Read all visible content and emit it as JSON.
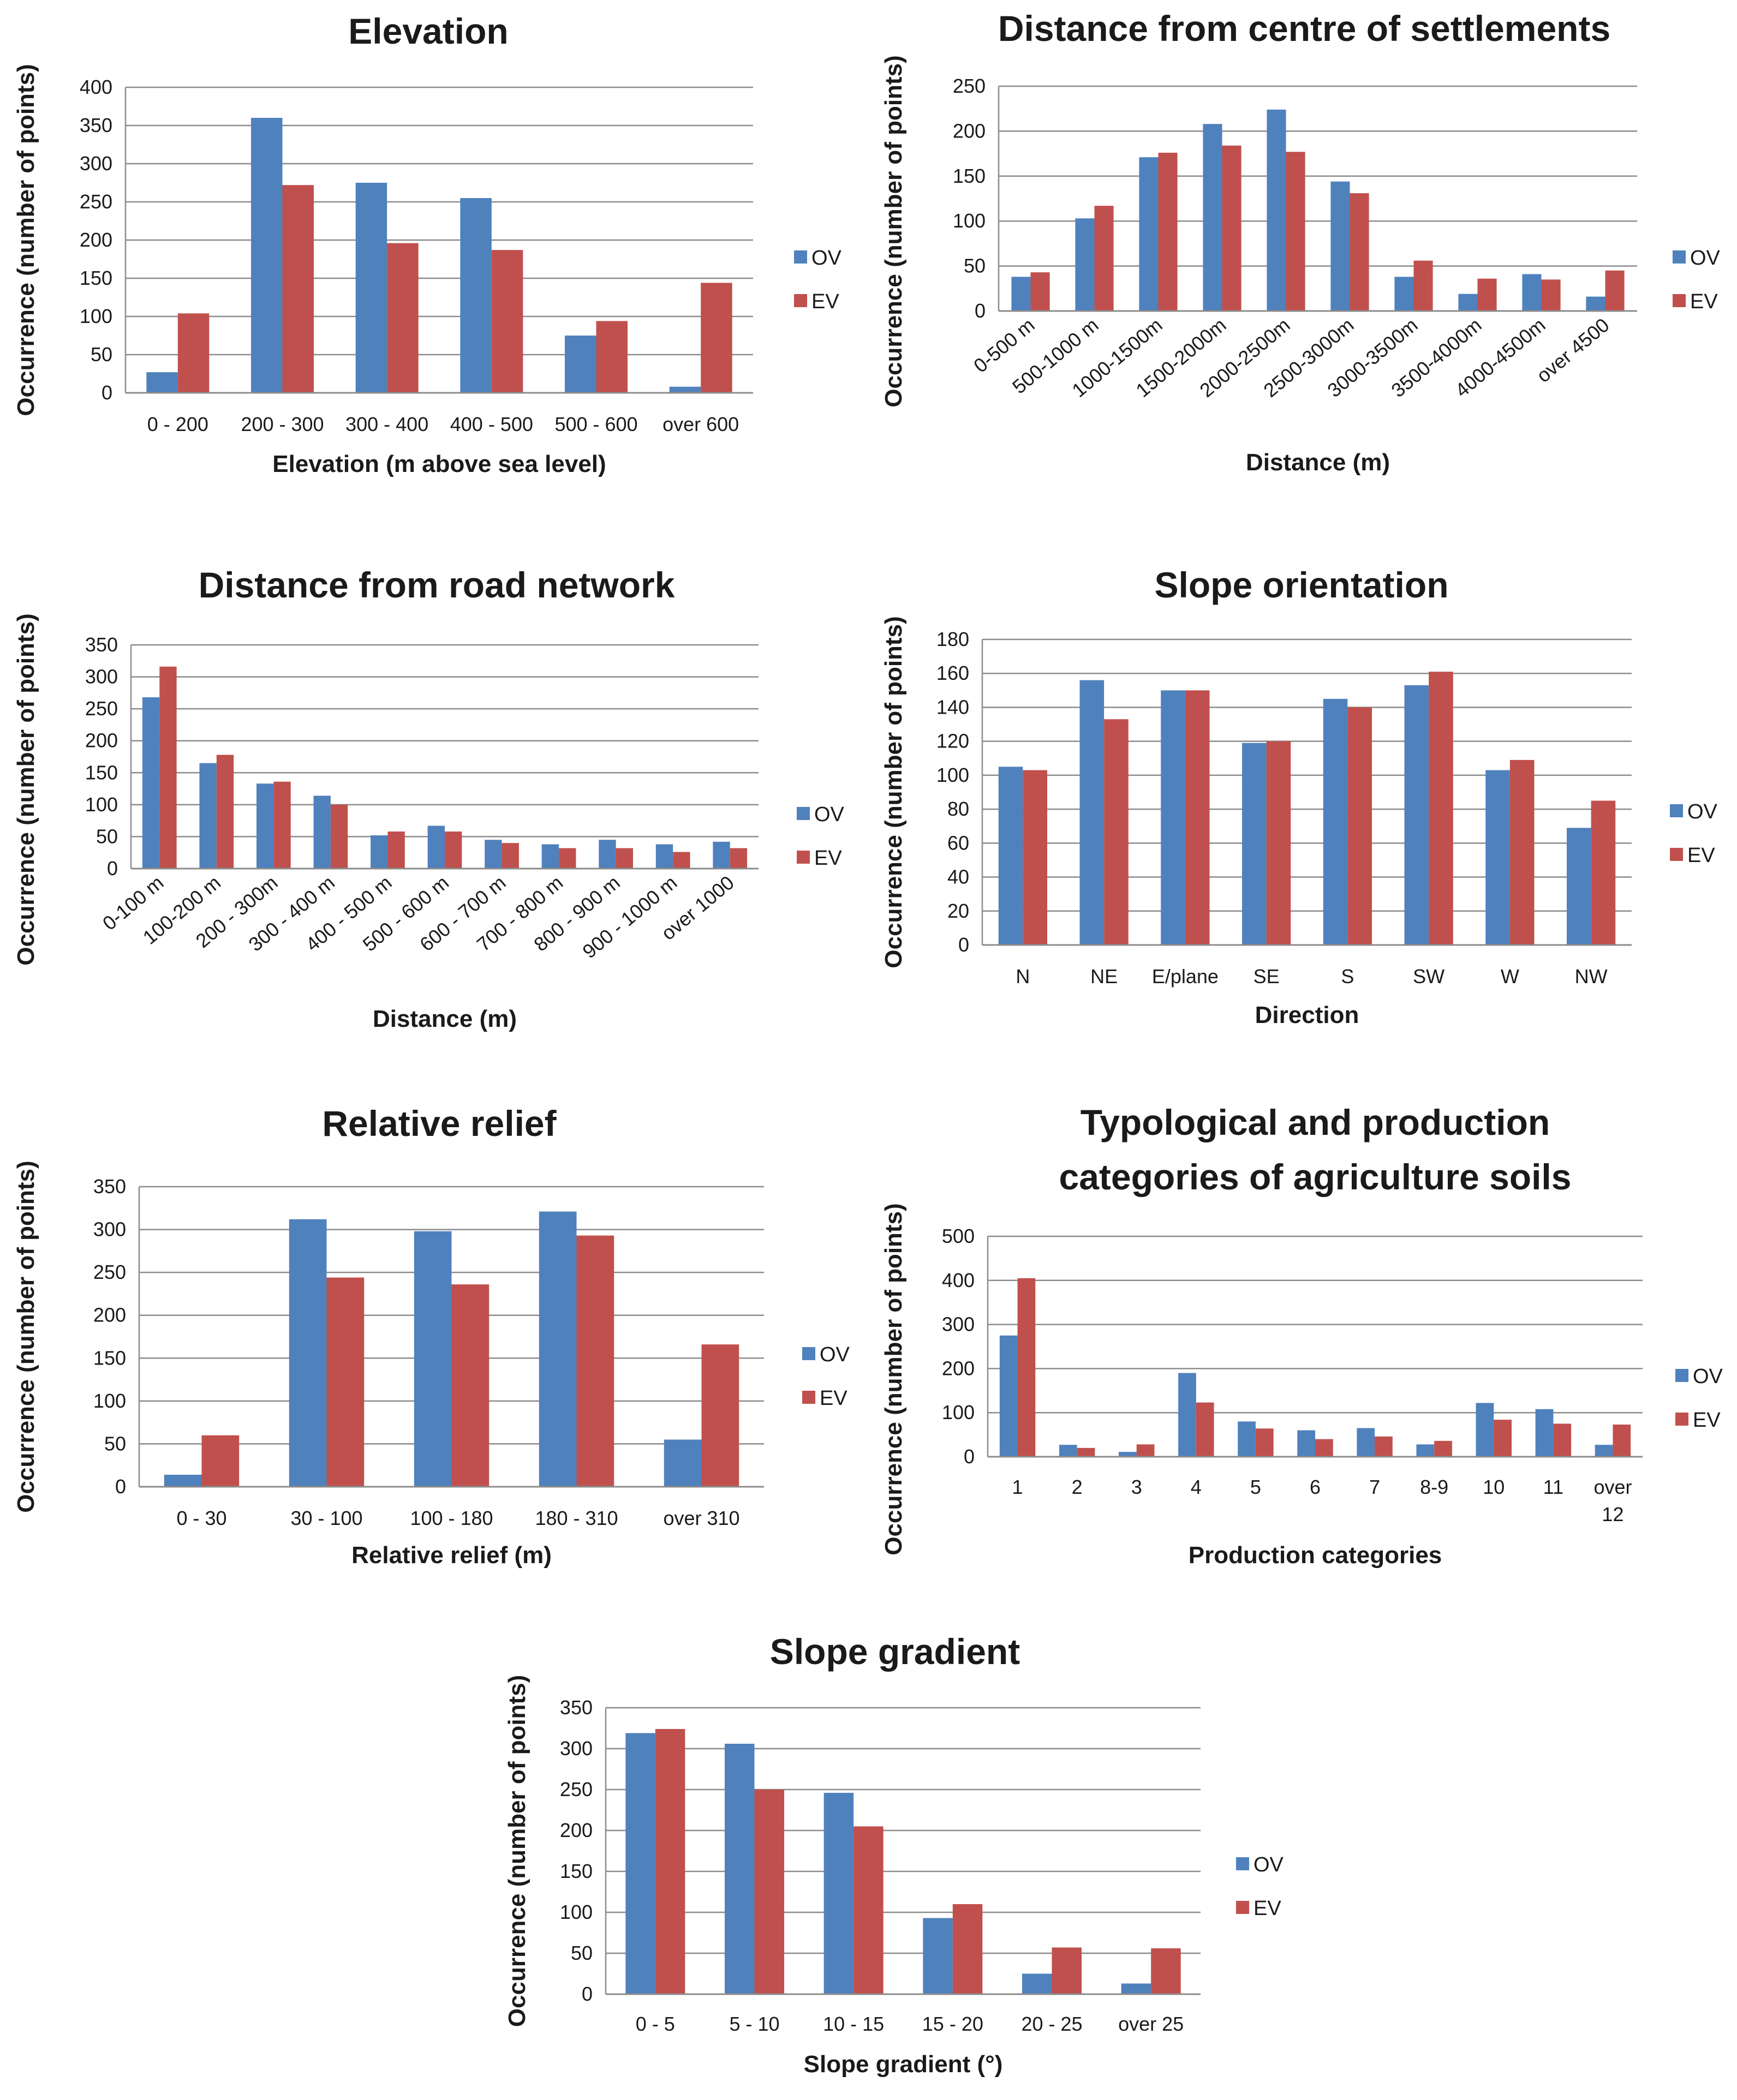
{
  "colors": {
    "OV": "#4F81BD",
    "EV": "#C0504D",
    "grid": "#8c8c8c"
  },
  "chart_data": [
    {
      "type": "bar",
      "title": [
        "Elevation"
      ],
      "xlabel": "Elevation (m above sea level)",
      "ylabel": "Occurrence (number of points)",
      "ylim": [
        0,
        400
      ],
      "yticks": [
        0,
        50,
        100,
        150,
        200,
        250,
        300,
        350,
        400
      ],
      "categories": [
        "0 - 200",
        "200 - 300",
        "300 - 400",
        "400 - 500",
        "500 - 600",
        "over 600"
      ],
      "series": [
        {
          "name": "OV",
          "values": [
            27,
            360,
            275,
            255,
            75,
            8
          ]
        },
        {
          "name": "EV",
          "values": [
            104,
            272,
            196,
            187,
            94,
            144
          ]
        }
      ],
      "legend": "right",
      "grid": true
    },
    {
      "type": "bar",
      "title": [
        "Distance from centre of settlements"
      ],
      "xlabel": "Distance (m)",
      "ylabel": "Occurrence (number of points)",
      "ylim": [
        0,
        250
      ],
      "yticks": [
        0,
        50,
        100,
        150,
        200,
        250
      ],
      "categories": [
        "0-500 m",
        "500-1000 m",
        "1000-1500m",
        "1500-2000m",
        "2000-2500m",
        "2500-3000m",
        "3000-3500m",
        "3500-4000m",
        "4000-4500m",
        "over 4500"
      ],
      "series": [
        {
          "name": "OV",
          "values": [
            38,
            103,
            171,
            208,
            224,
            144,
            38,
            19,
            41,
            16
          ]
        },
        {
          "name": "EV",
          "values": [
            43,
            117,
            176,
            184,
            177,
            131,
            56,
            36,
            35,
            45
          ]
        }
      ],
      "legend": "right",
      "grid": true
    },
    {
      "type": "bar",
      "title": [
        "Distance from road network"
      ],
      "xlabel": "Distance (m)",
      "ylabel": "Occurrence (number of points)",
      "ylim": [
        0,
        350
      ],
      "yticks": [
        0,
        50,
        100,
        150,
        200,
        250,
        300,
        350
      ],
      "categories": [
        "0-100 m",
        "100-200 m",
        "200 - 300m",
        "300 - 400 m",
        "400 - 500 m",
        "500 - 600 m",
        "600 - 700 m",
        "700 - 800 m",
        "800 - 900 m",
        "900 - 1000 m",
        "over 1000"
      ],
      "series": [
        {
          "name": "OV",
          "values": [
            268,
            165,
            133,
            114,
            52,
            67,
            45,
            38,
            45,
            38,
            42
          ]
        },
        {
          "name": "EV",
          "values": [
            316,
            178,
            136,
            100,
            58,
            58,
            40,
            32,
            32,
            26,
            32
          ]
        }
      ],
      "legend": "right",
      "grid": true
    },
    {
      "type": "bar",
      "title": [
        "Slope orientation"
      ],
      "xlabel": "Direction",
      "ylabel": "Occurrence (number of points)",
      "ylim": [
        0,
        180
      ],
      "yticks": [
        0,
        20,
        40,
        60,
        80,
        100,
        120,
        140,
        160,
        180
      ],
      "categories": [
        "N",
        "NE",
        "E/plane",
        "SE",
        "S",
        "SW",
        "W",
        "NW"
      ],
      "series": [
        {
          "name": "OV",
          "values": [
            105,
            156,
            150,
            119,
            145,
            153,
            103,
            69
          ]
        },
        {
          "name": "EV",
          "values": [
            103,
            133,
            150,
            120,
            140,
            161,
            109,
            85
          ]
        }
      ],
      "legend": "right",
      "grid": true
    },
    {
      "type": "bar",
      "title": [
        "Relative relief"
      ],
      "xlabel": "Relative relief  (m)",
      "ylabel": "Occurrence (number of points)",
      "ylim": [
        0,
        350
      ],
      "yticks": [
        0,
        50,
        100,
        150,
        200,
        250,
        300,
        350
      ],
      "categories": [
        "0 - 30",
        "30 - 100",
        "100 - 180",
        "180 - 310",
        "over 310"
      ],
      "series": [
        {
          "name": "OV",
          "values": [
            14,
            312,
            298,
            321,
            55
          ]
        },
        {
          "name": "EV",
          "values": [
            60,
            244,
            236,
            293,
            166
          ]
        }
      ],
      "legend": "right",
      "grid": true
    },
    {
      "type": "bar",
      "title": [
        "Typological and production",
        "categories of agriculture soils"
      ],
      "xlabel": "Production categories",
      "ylabel": "Occurrence (number of points)",
      "ylim": [
        0,
        500
      ],
      "yticks": [
        0,
        100,
        200,
        300,
        400,
        500
      ],
      "categories": [
        "1",
        "2",
        "3",
        "4",
        "5",
        "6",
        "7",
        "8-9",
        "10",
        "11",
        "over 12"
      ],
      "series": [
        {
          "name": "OV",
          "values": [
            275,
            27,
            11,
            190,
            80,
            60,
            65,
            28,
            122,
            108,
            27
          ]
        },
        {
          "name": "EV",
          "values": [
            405,
            20,
            28,
            123,
            64,
            40,
            46,
            36,
            84,
            75,
            73
          ]
        }
      ],
      "legend": "right",
      "grid": true
    },
    {
      "type": "bar",
      "title": [
        "Slope gradient"
      ],
      "xlabel": "Slope gradient (°)",
      "ylabel": "Occurrence (number of points)",
      "ylim": [
        0,
        350
      ],
      "yticks": [
        0,
        50,
        100,
        150,
        200,
        250,
        300,
        350
      ],
      "categories": [
        "0 - 5",
        "5 - 10",
        "10 - 15",
        "15 - 20",
        "20 - 25",
        "over 25"
      ],
      "series": [
        {
          "name": "OV",
          "values": [
            319,
            306,
            246,
            93,
            25,
            13
          ]
        },
        {
          "name": "EV",
          "values": [
            324,
            250,
            205,
            110,
            57,
            56
          ]
        }
      ],
      "legend": "right",
      "grid": true
    }
  ]
}
